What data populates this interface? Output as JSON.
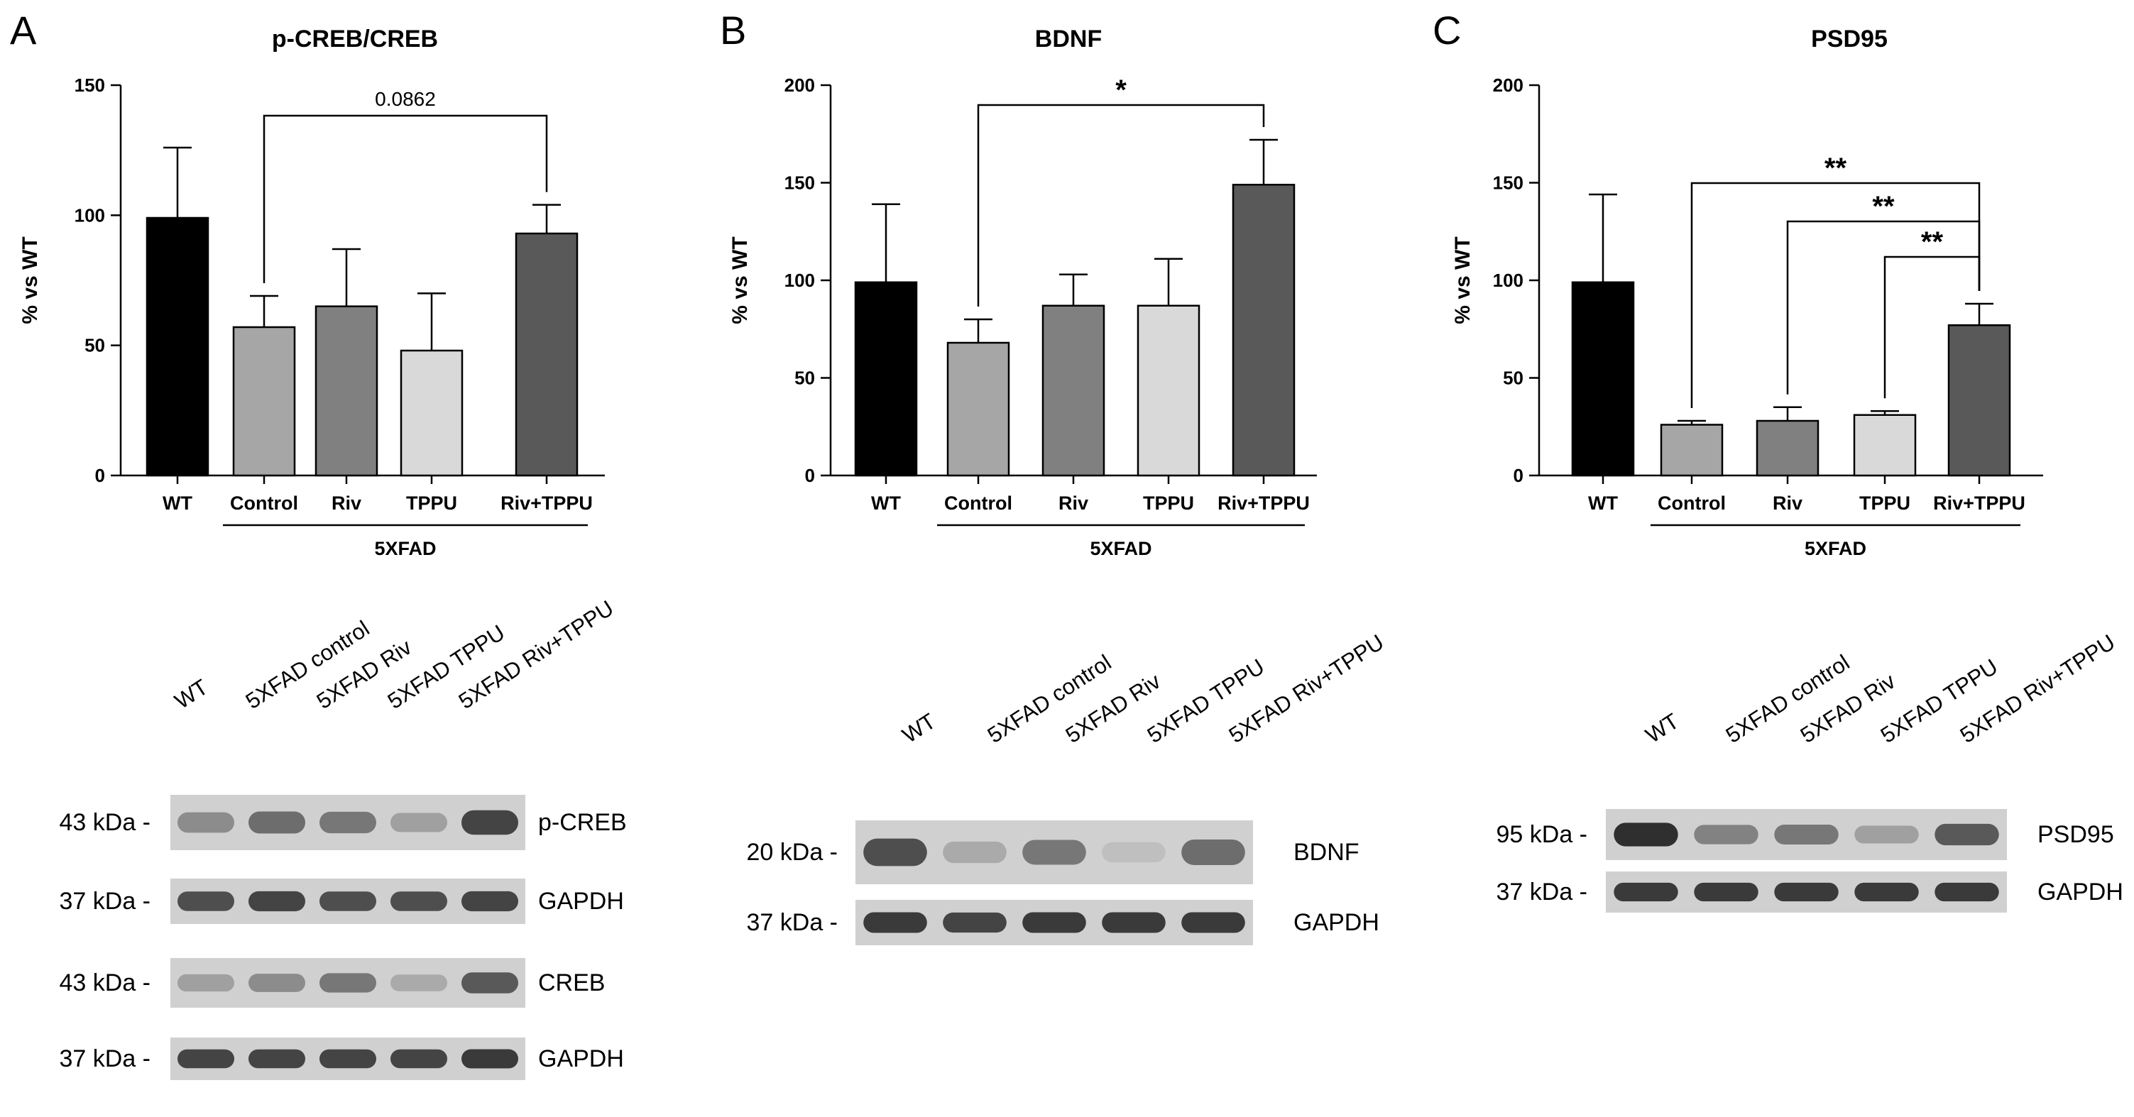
{
  "chart_data": [
    {
      "panel_letter": "A",
      "type": "bar",
      "title": "p-CREB/CREB",
      "ylabel": "% vs WT",
      "ylim": [
        0,
        150
      ],
      "yticks": [
        0,
        50,
        100,
        150
      ],
      "categories": [
        "WT",
        "Control",
        "Riv",
        "TPPU",
        "Riv+TPPU"
      ],
      "values": [
        99,
        57,
        65,
        48,
        93
      ],
      "errors": [
        27,
        12,
        22,
        22,
        11
      ],
      "bar_colors": [
        "#000000",
        "#a6a6a6",
        "#808080",
        "#d9d9d9",
        "#595959"
      ],
      "group_label": "5XFAD",
      "comparisons": [
        {
          "from": "Control",
          "to": "Riv+TPPU",
          "label": "0.0862"
        }
      ],
      "blot": {
        "lanes": [
          "WT",
          "5XFAD control",
          "5XFAD Riv",
          "5XFAD TPPU",
          "5XFAD Riv+TPPU"
        ],
        "rows": [
          {
            "kda": "43 kDa -",
            "protein": "p-CREB",
            "intensity": [
              0.55,
              0.7,
              0.65,
              0.45,
              0.9
            ]
          },
          {
            "kda": "37 kDa -",
            "protein": "GAPDH",
            "intensity": [
              0.85,
              0.9,
              0.85,
              0.85,
              0.9
            ]
          },
          {
            "kda": "43 kDa -",
            "protein": "CREB",
            "intensity": [
              0.45,
              0.55,
              0.65,
              0.4,
              0.8
            ]
          },
          {
            "kda": "37 kDa -",
            "protein": "GAPDH",
            "intensity": [
              0.9,
              0.9,
              0.9,
              0.9,
              0.95
            ]
          }
        ]
      }
    },
    {
      "panel_letter": "B",
      "type": "bar",
      "title": "BDNF",
      "ylabel": "% vs WT",
      "ylim": [
        0,
        200
      ],
      "yticks": [
        0,
        50,
        100,
        150,
        200
      ],
      "categories": [
        "WT",
        "Control",
        "Riv",
        "TPPU",
        "Riv+TPPU"
      ],
      "values": [
        99,
        68,
        87,
        87,
        149
      ],
      "errors": [
        40,
        12,
        16,
        24,
        23
      ],
      "bar_colors": [
        "#000000",
        "#a6a6a6",
        "#808080",
        "#d9d9d9",
        "#595959"
      ],
      "group_label": "5XFAD",
      "comparisons": [
        {
          "from": "Control",
          "to": "Riv+TPPU",
          "label": "*"
        }
      ],
      "blot": {
        "lanes": [
          "WT",
          "5XFAD control",
          "5XFAD Riv",
          "5XFAD TPPU",
          "5XFAD Riv+TPPU"
        ],
        "rows": [
          {
            "kda": "20 kDa -",
            "protein": "BDNF",
            "intensity": [
              0.85,
              0.4,
              0.65,
              0.3,
              0.7
            ]
          },
          {
            "kda": "37 kDa -",
            "protein": "GAPDH",
            "intensity": [
              0.95,
              0.9,
              0.95,
              0.95,
              0.95
            ]
          }
        ]
      }
    },
    {
      "panel_letter": "C",
      "type": "bar",
      "title": "PSD95",
      "ylabel": "% vs WT",
      "ylim": [
        0,
        200
      ],
      "yticks": [
        0,
        50,
        100,
        150,
        200
      ],
      "categories": [
        "WT",
        "Control",
        "Riv",
        "TPPU",
        "Riv+TPPU"
      ],
      "values": [
        99,
        26,
        28,
        31,
        77
      ],
      "errors": [
        45,
        2,
        7,
        2,
        11
      ],
      "bar_colors": [
        "#000000",
        "#a6a6a6",
        "#808080",
        "#d9d9d9",
        "#595959"
      ],
      "group_label": "5XFAD",
      "comparisons": [
        {
          "from": "Control",
          "to": "Riv+TPPU",
          "label": "**"
        },
        {
          "from": "Riv",
          "to": "Riv+TPPU",
          "label": "**"
        },
        {
          "from": "TPPU",
          "to": "Riv+TPPU",
          "label": "**"
        }
      ],
      "blot": {
        "lanes": [
          "WT",
          "5XFAD control",
          "5XFAD Riv",
          "5XFAD TPPU",
          "5XFAD Riv+TPPU"
        ],
        "rows": [
          {
            "kda": "95 kDa -",
            "protein": "PSD95",
            "intensity": [
              1.0,
              0.6,
              0.65,
              0.45,
              0.8
            ]
          },
          {
            "kda": "37 kDa -",
            "protein": "GAPDH",
            "intensity": [
              0.95,
              0.95,
              0.95,
              0.95,
              0.95
            ]
          }
        ]
      }
    }
  ]
}
